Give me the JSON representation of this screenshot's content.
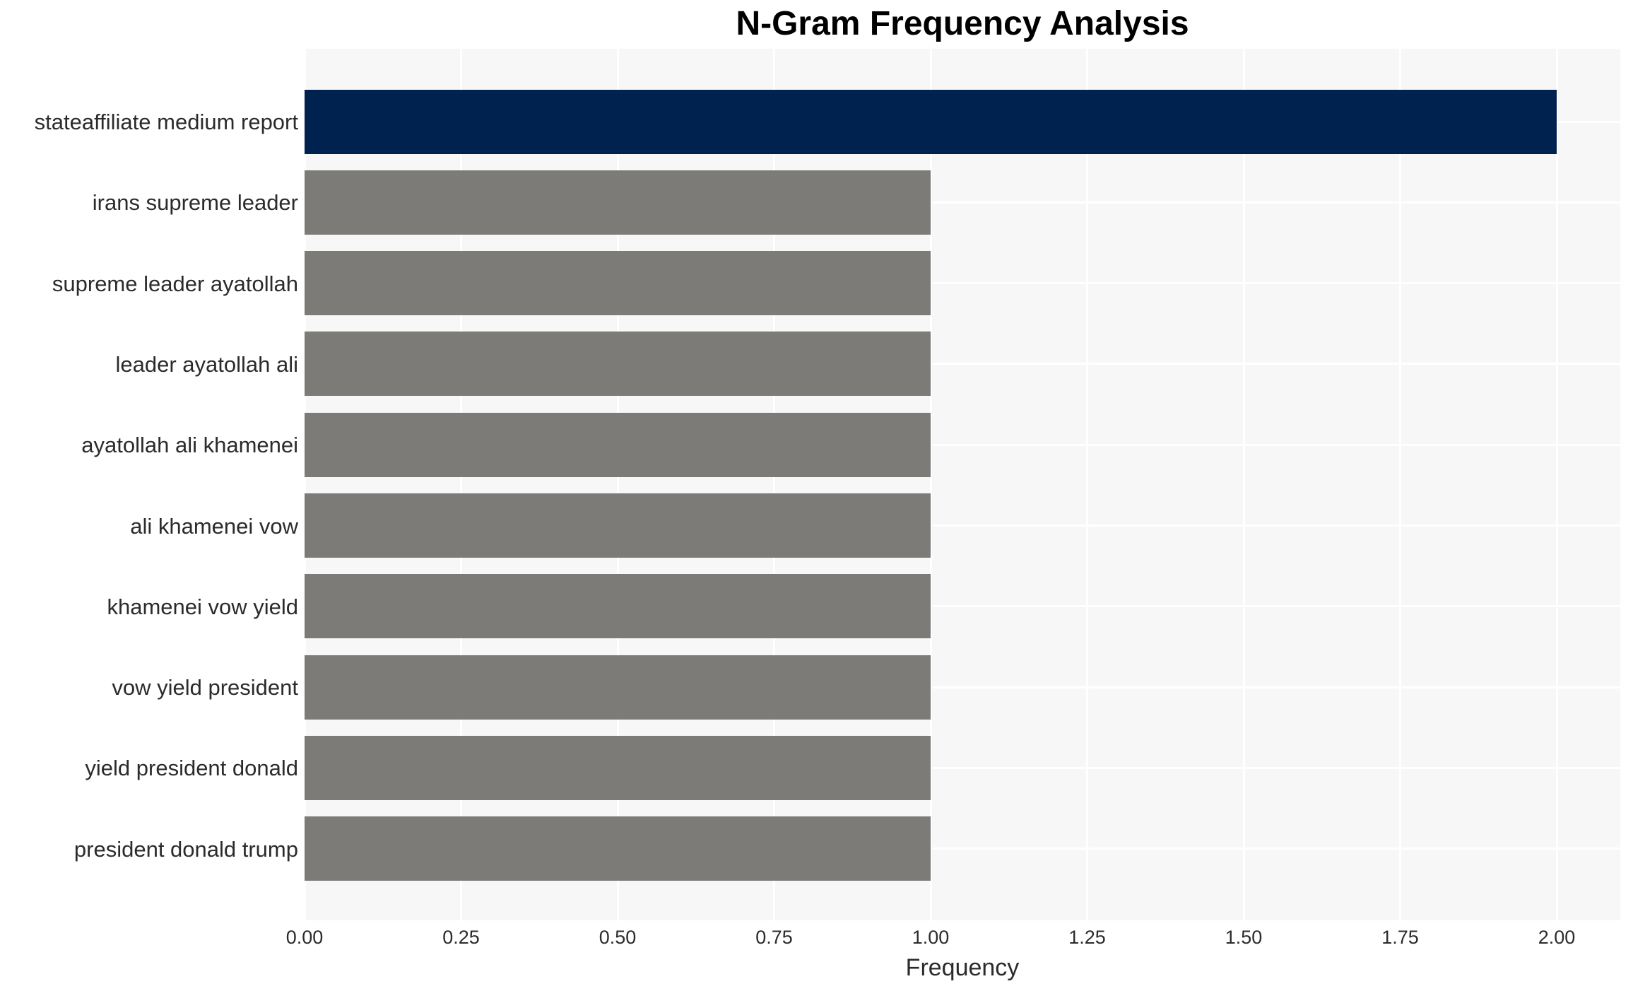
{
  "chart": {
    "title": "N-Gram Frequency Analysis",
    "xlabel": "Frequency"
  },
  "chart_data": {
    "type": "bar",
    "orientation": "horizontal",
    "title": "N-Gram Frequency Analysis",
    "xlabel": "Frequency",
    "ylabel": "",
    "categories": [
      "stateaffiliate medium report",
      "irans supreme leader",
      "supreme leader ayatollah",
      "leader ayatollah ali",
      "ayatollah ali khamenei",
      "ali khamenei vow",
      "khamenei vow yield",
      "vow yield president",
      "yield president donald",
      "president donald trump"
    ],
    "values": [
      2,
      1,
      1,
      1,
      1,
      1,
      1,
      1,
      1,
      1
    ],
    "bar_colors": [
      "#00224e",
      "#7c7b78",
      "#7c7b78",
      "#7c7b78",
      "#7c7b78",
      "#7c7b78",
      "#7c7b78",
      "#7c7b78",
      "#7c7b78",
      "#7c7b78"
    ],
    "xlim": [
      0,
      2.1
    ],
    "x_ticks": [
      0,
      0.25,
      0.5,
      0.75,
      1.0,
      1.25,
      1.5,
      1.75,
      2.0
    ],
    "x_tick_labels": [
      "0.00",
      "0.25",
      "0.50",
      "0.75",
      "1.00",
      "1.25",
      "1.50",
      "1.75",
      "2.00"
    ],
    "grid": true,
    "legend": false,
    "colors": {
      "highlight": "#00224e",
      "default": "#7c7b78",
      "plot_background": "#f7f7f7",
      "gridline": "#ffffff",
      "text": "#2b2b2b"
    }
  }
}
